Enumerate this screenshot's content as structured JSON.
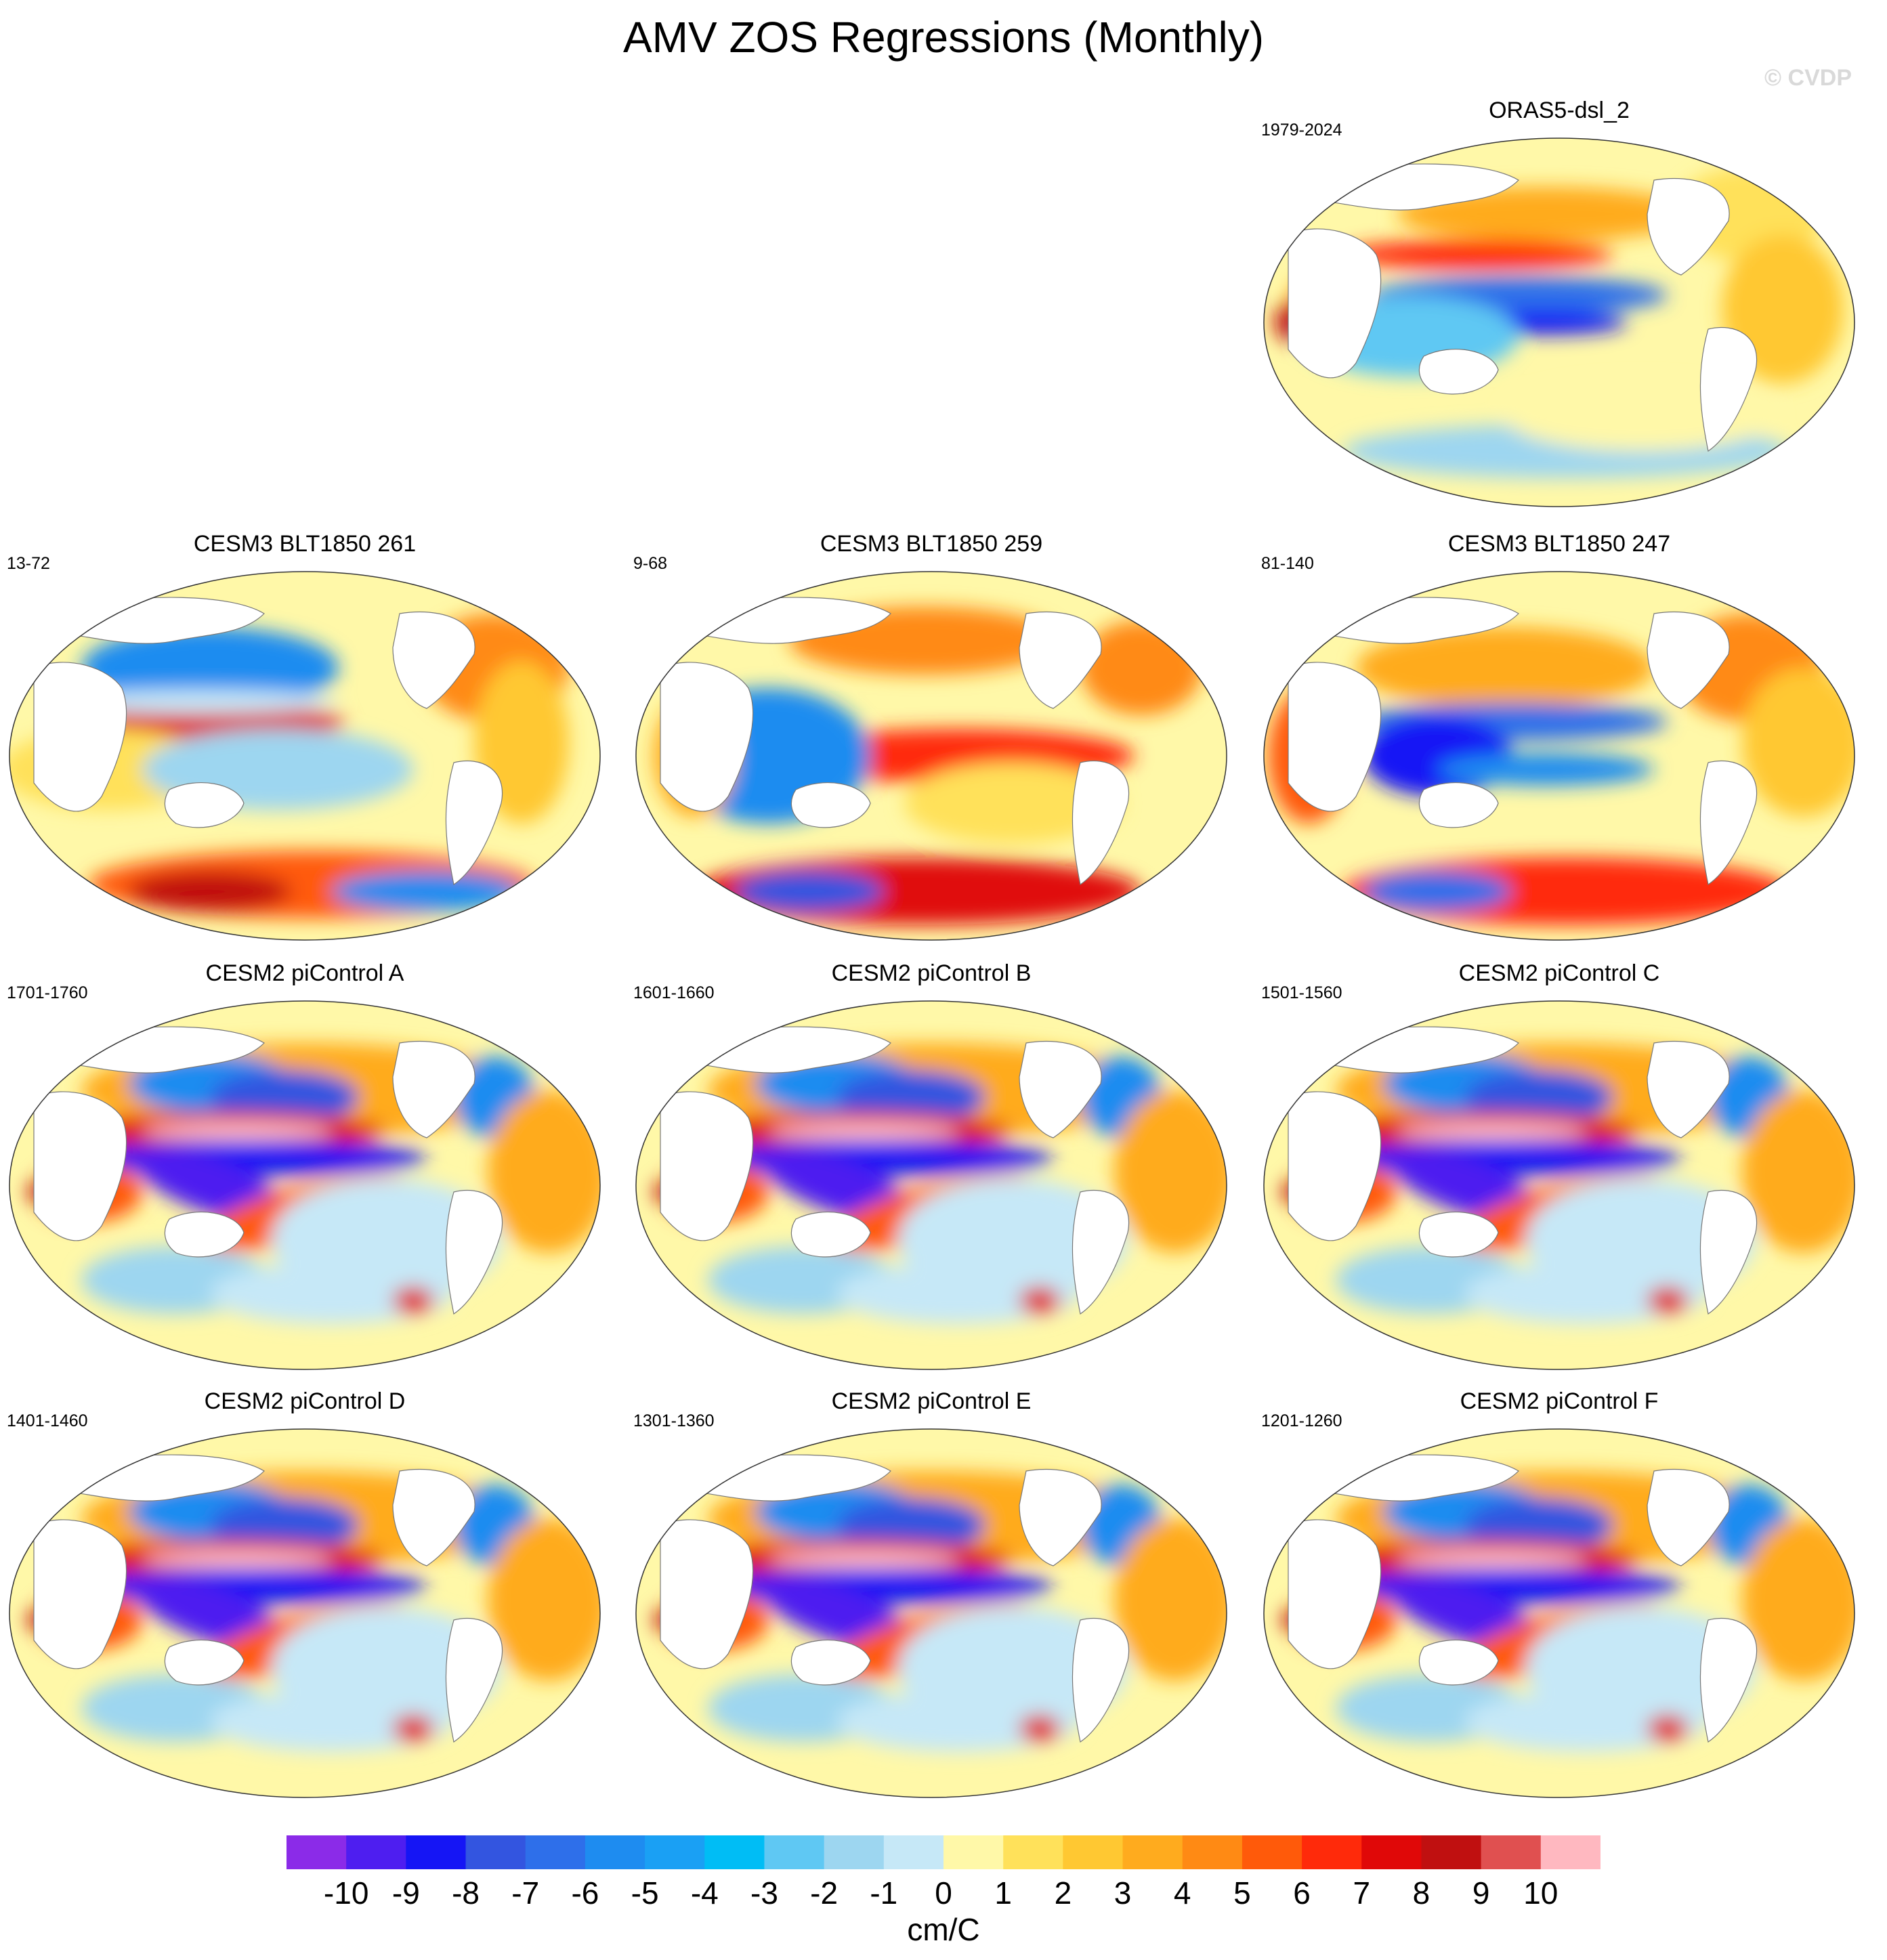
{
  "title": "AMV ZOS Regressions (Monthly)",
  "watermark": "© CVDP",
  "panels": [
    {
      "title": "ORAS5-dsl_2",
      "period": "1979-2024",
      "style": "obs"
    },
    {
      "title": "CESM3 BLT1850 261",
      "period": "13-72",
      "style": "cesm3a"
    },
    {
      "title": "CESM3 BLT1850 259",
      "period": "9-68",
      "style": "cesm3b"
    },
    {
      "title": "CESM3 BLT1850 247",
      "period": "81-140",
      "style": "cesm3c"
    },
    {
      "title": "CESM2 piControl A",
      "period": "1701-1760",
      "style": "cesm2"
    },
    {
      "title": "CESM2 piControl B",
      "period": "1601-1660",
      "style": "cesm2"
    },
    {
      "title": "CESM2 piControl C",
      "period": "1501-1560",
      "style": "cesm2"
    },
    {
      "title": "CESM2 piControl D",
      "period": "1401-1460",
      "style": "cesm2"
    },
    {
      "title": "CESM2 piControl E",
      "period": "1301-1360",
      "style": "cesm2"
    },
    {
      "title": "CESM2 piControl F",
      "period": "1201-1260",
      "style": "cesm2"
    }
  ],
  "colorbar": {
    "levels": [
      "-10",
      "-9",
      "-8",
      "-7",
      "-6",
      "-5",
      "-4",
      "-3",
      "-2",
      "-1",
      "0",
      "1",
      "2",
      "3",
      "4",
      "5",
      "6",
      "7",
      "8",
      "9",
      "10"
    ],
    "colors": [
      "#8b2be8",
      "#4e1ef0",
      "#1515f5",
      "#3355e0",
      "#2e6fea",
      "#1e8cf0",
      "#1aa0f4",
      "#00bdf5",
      "#5fc8f3",
      "#9dd6f0",
      "#c6e8f7",
      "#fff8a8",
      "#ffe15a",
      "#ffc832",
      "#ffab1e",
      "#ff8a14",
      "#ff5a0a",
      "#ff2a0a",
      "#e00808",
      "#c01010",
      "#e05050",
      "#ffb8c0"
    ],
    "units": "cm/C"
  }
}
